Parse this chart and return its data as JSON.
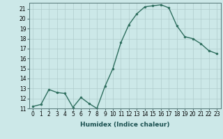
{
  "x": [
    0,
    1,
    2,
    3,
    4,
    5,
    6,
    7,
    8,
    9,
    10,
    11,
    12,
    13,
    14,
    15,
    16,
    17,
    18,
    19,
    20,
    21,
    22,
    23
  ],
  "y": [
    11.2,
    11.4,
    12.9,
    12.6,
    12.5,
    11.1,
    12.1,
    11.5,
    11.0,
    13.2,
    15.0,
    17.6,
    19.4,
    20.5,
    21.2,
    21.3,
    21.4,
    21.1,
    19.3,
    18.2,
    18.0,
    17.5,
    16.8,
    16.5
  ],
  "line_color": "#2e6e5e",
  "marker_color": "#2e6e5e",
  "bg_color": "#cce8e8",
  "grid_color": "#b0cccc",
  "xlabel": "Humidex (Indice chaleur)",
  "ylim": [
    11,
    21.6
  ],
  "xlim": [
    -0.5,
    23.5
  ],
  "yticks": [
    11,
    12,
    13,
    14,
    15,
    16,
    17,
    18,
    19,
    20,
    21
  ],
  "xticks": [
    0,
    1,
    2,
    3,
    4,
    5,
    6,
    7,
    8,
    9,
    10,
    11,
    12,
    13,
    14,
    15,
    16,
    17,
    18,
    19,
    20,
    21,
    22,
    23
  ],
  "xlabel_fontsize": 6.5,
  "tick_fontsize": 5.5,
  "linewidth": 1.0,
  "markersize": 2.0
}
